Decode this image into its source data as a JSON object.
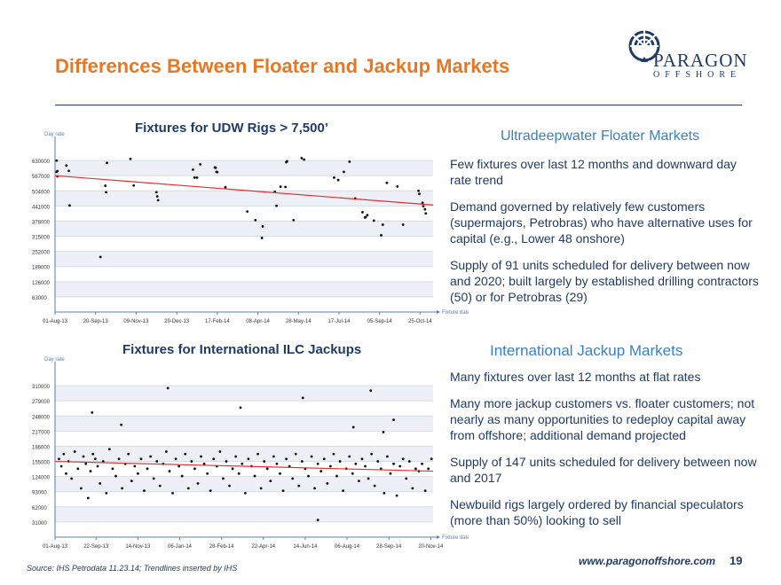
{
  "slide": {
    "title": "Differences Between Floater and Jackup Markets",
    "brand": "PARAGON",
    "brand_sub": "OFFSHORE",
    "source": "Source:  IHS Petrodata 11.23.14; Trendlines inserted by IHS",
    "url": "www.paragonoffshore.com",
    "page": "19"
  },
  "colors": {
    "title": "#e87722",
    "navy": "#1f3b66",
    "accent_blue": "#3a7fc3",
    "trend": "#e03030",
    "axis": "#5b7fb0"
  },
  "floater": {
    "heading": "Ultradeepwater Floater Markets",
    "bullets": [
      "Few fixtures over last 12 months and downward day rate trend",
      "Demand governed by relatively few customers (supermajors, Petrobras) who have alternative uses for capital (e.g., Lower 48 onshore)",
      "Supply of 91 units scheduled for delivery between now and 2020; built largely by established drilling contractors (50) or for Petrobras (29)"
    ]
  },
  "jackup": {
    "heading": "International Jackup Markets",
    "bullets": [
      "Many fixtures over last 12 months at flat rates",
      "Many more jackup customers vs. floater customers; not nearly as many opportunities to redeploy capital away from offshore; additional demand projected",
      "Supply of 147 units scheduled for delivery between now and 2017",
      "Newbuild rigs largely ordered by financial speculators (more than 50%) looking to sell"
    ]
  },
  "chart_data": [
    {
      "type": "scatter",
      "title": "Fixtures for UDW Rigs > 7,500’",
      "ylabel": "Day rate",
      "xlabel": "Fixture date",
      "ylim": [
        0,
        693000
      ],
      "y_ticks": [
        63000,
        126000,
        189000,
        252000,
        315000,
        378000,
        441000,
        504000,
        567000,
        630000
      ],
      "y_tick_labels": [
        "63000",
        "126000",
        "189000",
        "252000",
        "315000",
        "378000",
        "441000",
        "504000",
        "567000",
        "630000"
      ],
      "x_ticks": [
        "2013-08-01",
        "2013-09-20",
        "2013-11-09",
        "2013-12-29",
        "2014-02-17",
        "2014-04-08",
        "2014-05-28",
        "2014-07-17",
        "2014-09-05",
        "2014-10-25"
      ],
      "x_tick_labels": [
        "01-Aug-13",
        "20-Sep-13",
        "09-Nov-13",
        "29-Dec-13",
        "17-Feb-14",
        "08-Apr-14",
        "28-May-14",
        "17-Jul-14",
        "05-Sep-14",
        "25-Oct-14"
      ],
      "xlim": [
        "2013-08-01",
        "2014-11-10"
      ],
      "grid": true,
      "trendline": {
        "x": [
          "2013-08-01",
          "2014-11-10"
        ],
        "y": [
          567000,
          445000
        ]
      },
      "x": [
        "2013-08-03",
        "2013-08-04",
        "2013-08-03",
        "2013-08-04",
        "2013-08-15",
        "2013-08-18",
        "2013-08-19",
        "2013-09-26",
        "2013-10-02",
        "2013-10-03",
        "2013-10-04",
        "2013-11-02",
        "2013-11-06",
        "2013-12-04",
        "2013-12-05",
        "2013-12-06",
        "2014-01-18",
        "2014-01-20",
        "2014-01-23",
        "2014-01-27",
        "2014-02-14",
        "2014-02-15",
        "2014-02-16",
        "2014-02-17",
        "2014-02-27",
        "2014-03-26",
        "2014-04-05",
        "2014-04-13",
        "2014-04-14",
        "2014-04-29",
        "2014-05-01",
        "2014-05-06",
        "2014-05-12",
        "2014-05-13",
        "2014-05-14",
        "2014-05-22",
        "2014-06-01",
        "2014-06-04",
        "2014-07-11",
        "2014-07-16",
        "2014-07-23",
        "2014-07-30",
        "2014-08-06",
        "2014-08-15",
        "2014-08-18",
        "2014-08-19",
        "2014-08-21",
        "2014-08-29",
        "2014-09-07",
        "2014-09-09",
        "2014-09-14",
        "2014-09-27",
        "2014-10-04",
        "2014-10-23",
        "2014-10-24",
        "2014-10-28",
        "2014-10-29",
        "2014-10-31",
        "2014-11-01"
      ],
      "y": [
        630000,
        586000,
        583000,
        564000,
        609000,
        587000,
        443000,
        229000,
        525000,
        498000,
        620000,
        637000,
        526000,
        498000,
        481000,
        465000,
        592000,
        559000,
        559000,
        614000,
        601000,
        600000,
        583000,
        582000,
        519000,
        418000,
        382000,
        308000,
        356000,
        500000,
        442000,
        521000,
        520000,
        623000,
        627000,
        382000,
        640000,
        634000,
        559000,
        549000,
        583000,
        625000,
        472000,
        415000,
        393000,
        395000,
        403000,
        380000,
        319000,
        363000,
        537000,
        522000,
        363000,
        504000,
        491000,
        454000,
        440000,
        427000,
        410000
      ]
    },
    {
      "type": "scatter",
      "title": "Fixtures for International ILC Jackups",
      "ylabel": "Day rate",
      "xlabel": "Fixture date",
      "ylim": [
        0,
        341000
      ],
      "y_ticks": [
        31000,
        62000,
        93000,
        124000,
        155000,
        186000,
        217000,
        248000,
        279000,
        310000
      ],
      "y_tick_labels": [
        "31000",
        "62000",
        "93000",
        "124000",
        "155000",
        "186000",
        "217000",
        "248000",
        "279000",
        "310000"
      ],
      "x_ticks": [
        "2013-08-01",
        "2013-09-22",
        "2013-11-14",
        "2014-01-06",
        "2014-02-28",
        "2014-04-22",
        "2014-06-14",
        "2014-08-06",
        "2014-09-28",
        "2014-11-20"
      ],
      "x_tick_labels": [
        "01-Aug-13",
        "22-Sep-13",
        "14-Nov-13",
        "06-Jan-14",
        "28-Feb-14",
        "22-Apr-14",
        "14-Jun-14",
        "06-Aug-14",
        "28-Sep-14",
        "20-Nov-14"
      ],
      "xlim": [
        "2013-08-01",
        "2014-11-23"
      ],
      "grid": true,
      "trendline": {
        "x": [
          "2013-08-01",
          "2014-11-23"
        ],
        "y": [
          155000,
          135000
        ]
      },
      "x": [
        "2013-08-06",
        "2013-08-09",
        "2013-08-12",
        "2013-08-15",
        "2013-08-18",
        "2013-08-22",
        "2013-08-26",
        "2013-08-30",
        "2013-09-03",
        "2013-09-06",
        "2013-09-09",
        "2013-09-12",
        "2013-09-15",
        "2013-09-18",
        "2013-09-21",
        "2013-09-24",
        "2013-09-27",
        "2013-10-01",
        "2013-10-05",
        "2013-10-09",
        "2013-10-13",
        "2013-10-17",
        "2013-10-21",
        "2013-10-25",
        "2013-10-29",
        "2013-11-02",
        "2013-11-06",
        "2013-11-10",
        "2013-11-14",
        "2013-11-18",
        "2013-11-22",
        "2013-11-26",
        "2013-11-30",
        "2013-12-04",
        "2013-12-08",
        "2013-12-12",
        "2013-12-16",
        "2013-12-20",
        "2013-12-24",
        "2013-12-28",
        "2014-01-01",
        "2014-01-05",
        "2014-01-09",
        "2014-01-13",
        "2014-01-17",
        "2014-01-21",
        "2014-01-25",
        "2014-01-29",
        "2014-02-02",
        "2014-02-06",
        "2014-02-10",
        "2014-02-14",
        "2014-02-18",
        "2014-02-22",
        "2014-02-26",
        "2014-03-02",
        "2014-03-06",
        "2014-03-10",
        "2014-03-14",
        "2014-03-18",
        "2014-03-22",
        "2014-03-26",
        "2014-03-30",
        "2014-04-03",
        "2014-04-07",
        "2014-04-11",
        "2014-04-15",
        "2014-04-19",
        "2014-04-23",
        "2014-04-27",
        "2014-05-01",
        "2014-05-05",
        "2014-05-09",
        "2014-05-13",
        "2014-05-17",
        "2014-05-21",
        "2014-05-25",
        "2014-05-29",
        "2014-06-02",
        "2014-06-06",
        "2014-06-10",
        "2014-06-14",
        "2014-06-18",
        "2014-06-22",
        "2014-06-26",
        "2014-06-30",
        "2014-07-04",
        "2014-07-08",
        "2014-07-12",
        "2014-07-16",
        "2014-07-20",
        "2014-07-24",
        "2014-07-28",
        "2014-08-01",
        "2014-08-05",
        "2014-08-09",
        "2014-08-13",
        "2014-08-17",
        "2014-08-21",
        "2014-08-25",
        "2014-08-29",
        "2014-09-02",
        "2014-09-06",
        "2014-09-10",
        "2014-09-14",
        "2014-09-18",
        "2014-09-22",
        "2014-09-26",
        "2014-09-30",
        "2014-10-04",
        "2014-10-08",
        "2014-10-12",
        "2014-10-16",
        "2014-10-20",
        "2014-10-24",
        "2014-10-28",
        "2014-11-01",
        "2014-11-05",
        "2014-11-09",
        "2014-11-13",
        "2014-11-17",
        "2014-11-21",
        "2014-09-05",
        "2013-09-17",
        "2013-10-24",
        "2013-12-22",
        "2014-03-24",
        "2014-06-11",
        "2014-06-30",
        "2014-08-14",
        "2014-09-21",
        "2014-10-04"
      ],
      "y": [
        160000,
        145000,
        170000,
        130000,
        155000,
        120000,
        175000,
        140000,
        100000,
        165000,
        150000,
        80000,
        135000,
        170000,
        160000,
        145000,
        110000,
        155000,
        90000,
        180000,
        140000,
        125000,
        160000,
        100000,
        150000,
        170000,
        115000,
        145000,
        130000,
        160000,
        95000,
        140000,
        165000,
        120000,
        155000,
        105000,
        150000,
        175000,
        135000,
        90000,
        160000,
        145000,
        125000,
        170000,
        100000,
        155000,
        140000,
        110000,
        165000,
        150000,
        130000,
        95000,
        160000,
        145000,
        175000,
        120000,
        155000,
        105000,
        140000,
        165000,
        130000,
        150000,
        90000,
        160000,
        145000,
        125000,
        170000,
        100000,
        155000,
        140000,
        115000,
        165000,
        150000,
        130000,
        95000,
        160000,
        145000,
        120000,
        170000,
        105000,
        155000,
        140000,
        125000,
        165000,
        100000,
        150000,
        135000,
        160000,
        110000,
        145000,
        170000,
        125000,
        155000,
        95000,
        140000,
        165000,
        130000,
        150000,
        115000,
        160000,
        145000,
        120000,
        170000,
        105000,
        155000,
        140000,
        90000,
        165000,
        130000,
        150000,
        85000,
        145000,
        160000,
        120000,
        155000,
        100000,
        140000,
        135000,
        150000,
        95000,
        140000,
        160000,
        300000,
        255000,
        230000,
        305000,
        265000,
        285000,
        35000,
        225000,
        215000,
        240000
      ]
    }
  ]
}
